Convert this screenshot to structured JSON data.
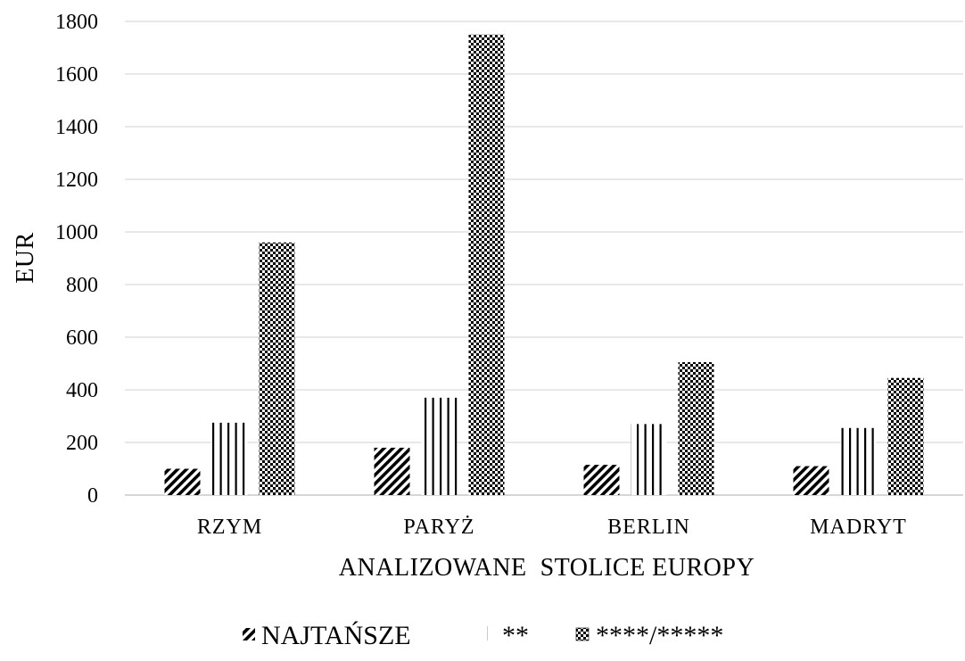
{
  "chart_data": {
    "type": "bar",
    "xlabel": "ANALIZOWANE  STOLICE EUROPY",
    "ylabel": "EUR",
    "ylim": [
      0,
      1800
    ],
    "yticks": [
      0,
      200,
      400,
      600,
      800,
      1000,
      1200,
      1400,
      1600,
      1800
    ],
    "grid": true,
    "legend_position": "bottom",
    "categories": [
      "RZYM",
      "PARYŻ",
      "BERLIN",
      "MADRYT"
    ],
    "series": [
      {
        "name": "NAJTAŃSZE",
        "pattern": "diagonal-stripes",
        "values": [
          100,
          180,
          115,
          110
        ]
      },
      {
        "name": "**",
        "pattern": "vertical-stripes",
        "values": [
          275,
          370,
          270,
          255
        ]
      },
      {
        "name": "****/*****",
        "pattern": "checkerboard",
        "values": [
          960,
          1750,
          505,
          445
        ]
      }
    ]
  }
}
